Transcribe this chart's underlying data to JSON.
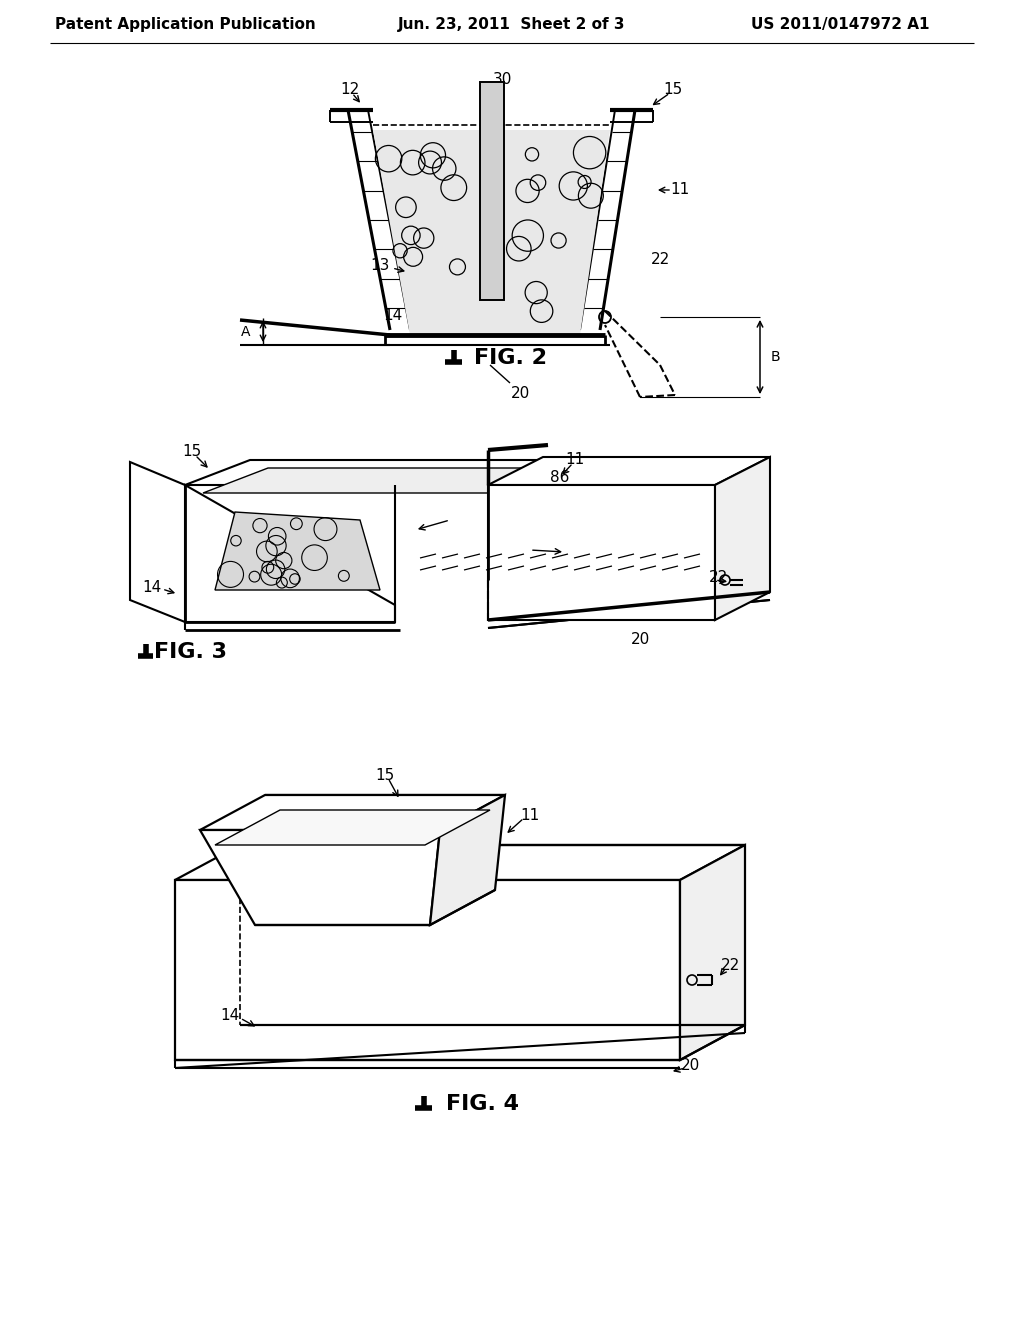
{
  "bg_color": "#ffffff",
  "header_left": "Patent Application Publication",
  "header_center": "Jun. 23, 2011  Sheet 2 of 3",
  "header_right": "US 2011/0147972 A1",
  "header_fontsize": 11,
  "label_fontsize": 11,
  "fig_label_fontsize": 16
}
